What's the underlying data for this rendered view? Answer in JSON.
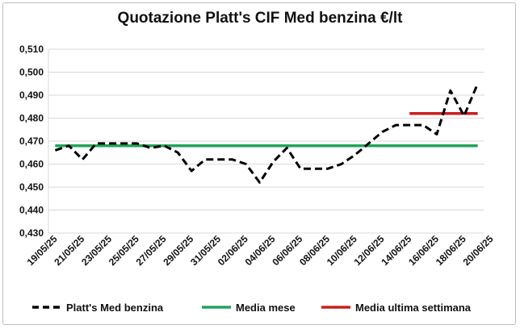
{
  "chart_data": {
    "type": "line",
    "title": "Quotazione Platt's CIF Med benzina €/lt",
    "xlabel": "",
    "ylabel": "",
    "ylim": [
      0.43,
      0.51
    ],
    "yticks": [
      "0,430",
      "0,440",
      "0,450",
      "0,460",
      "0,470",
      "0,480",
      "0,490",
      "0,500",
      "0,510"
    ],
    "xticks": [
      "19/05/25",
      "21/05/25",
      "23/05/25",
      "25/05/25",
      "27/05/25",
      "29/05/25",
      "31/05/25",
      "02/06/25",
      "04/06/25",
      "06/06/25",
      "08/06/25",
      "10/06/25",
      "12/06/25",
      "14/06/25",
      "16/06/25",
      "18/06/25",
      "20/06/25"
    ],
    "x": [
      "19/05/25",
      "20/05/25",
      "21/05/25",
      "22/05/25",
      "23/05/25",
      "24/05/25",
      "25/05/25",
      "26/05/25",
      "27/05/25",
      "28/05/25",
      "29/05/25",
      "30/05/25",
      "31/05/25",
      "01/06/25",
      "02/06/25",
      "03/06/25",
      "04/06/25",
      "05/06/25",
      "06/06/25",
      "07/06/25",
      "08/06/25",
      "09/06/25",
      "10/06/25",
      "11/06/25",
      "12/06/25",
      "13/06/25",
      "14/06/25",
      "15/06/25",
      "16/06/25",
      "17/06/25",
      "18/06/25",
      "19/06/25"
    ],
    "grid": true,
    "legend_position": "bottom",
    "series": [
      {
        "name": "Platt's Med benzina",
        "style": "dashed",
        "color": "#000000",
        "values": [
          0.466,
          0.468,
          0.462,
          0.469,
          0.469,
          0.469,
          0.469,
          0.467,
          0.468,
          0.465,
          0.457,
          0.462,
          0.462,
          0.462,
          0.46,
          0.452,
          0.461,
          0.467,
          0.458,
          0.458,
          0.458,
          0.46,
          0.464,
          0.469,
          0.474,
          0.477,
          0.477,
          0.477,
          0.473,
          0.492,
          0.481,
          0.495
        ]
      },
      {
        "name": "Media mese",
        "style": "solid",
        "color": "#22a35a",
        "values": [
          0.468,
          0.468,
          0.468,
          0.468,
          0.468,
          0.468,
          0.468,
          0.468,
          0.468,
          0.468,
          0.468,
          0.468,
          0.468,
          0.468,
          0.468,
          0.468,
          0.468,
          0.468,
          0.468,
          0.468,
          0.468,
          0.468,
          0.468,
          0.468,
          0.468,
          0.468,
          0.468,
          0.468,
          0.468,
          0.468,
          0.468,
          0.468
        ]
      },
      {
        "name": "Media ultima settimana",
        "style": "solid",
        "color": "#cc1f1f",
        "values": [
          null,
          null,
          null,
          null,
          null,
          null,
          null,
          null,
          null,
          null,
          null,
          null,
          null,
          null,
          null,
          null,
          null,
          null,
          null,
          null,
          null,
          null,
          null,
          null,
          null,
          null,
          0.482,
          0.482,
          0.482,
          0.482,
          0.482,
          0.482
        ]
      }
    ]
  }
}
